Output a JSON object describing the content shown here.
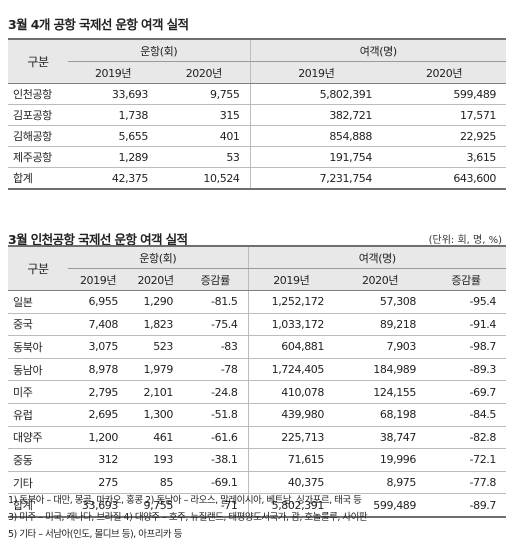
{
  "table1": {
    "title": "3월 4개 공항 국제선 운항 여객 실적",
    "row_header": "구분",
    "flights_header": "운항(회)",
    "passengers_header": "여객(명)",
    "years": [
      "2019년",
      "2020년"
    ],
    "rows": [
      {
        "name": "인천공항",
        "f2019": "33,693",
        "f2020": "9,755",
        "p2019": "5,802,391",
        "p2020": "599,489"
      },
      {
        "name": "김포공항",
        "f2019": "1,738",
        "f2020": "315",
        "p2019": "382,721",
        "p2020": "17,571"
      },
      {
        "name": "김해공항",
        "f2019": "5,655",
        "f2020": "401",
        "p2019": "854,888",
        "p2020": "22,925"
      },
      {
        "name": "제주공항",
        "f2019": "1,289",
        "f2020": "53",
        "p2019": "191,754",
        "p2020": "3,615"
      },
      {
        "name": "합계",
        "f2019": "42,375",
        "f2020": "10,524",
        "p2019": "7,231,754",
        "p2020": "643,600"
      }
    ]
  },
  "table2": {
    "title": "3월 인천공항 국제선 운항 여객 실적",
    "unit_note": "(단위: 회, 명, %)",
    "row_header": "구분",
    "flights_header": "운항(회)",
    "passengers_header": "여객(명)",
    "years": [
      "2019년",
      "2020년"
    ],
    "change_label": "증감률",
    "rows": [
      {
        "name": "일본",
        "f2019": "6,955",
        "f2020": "1,290",
        "fchg": "-81.5",
        "p2019": "1,252,172",
        "p2020": "57,308",
        "pchg": "-95.4"
      },
      {
        "name": "중국",
        "f2019": "7,408",
        "f2020": "1,823",
        "fchg": "-75.4",
        "p2019": "1,033,172",
        "p2020": "89,218",
        "pchg": "-91.4"
      },
      {
        "name": "동북아",
        "f2019": "3,075",
        "f2020": "523",
        "fchg": "-83",
        "p2019": "604,881",
        "p2020": "7,903",
        "pchg": "-98.7"
      },
      {
        "name": "동남아",
        "f2019": "8,978",
        "f2020": "1,979",
        "fchg": "-78",
        "p2019": "1,724,405",
        "p2020": "184,989",
        "pchg": "-89.3"
      },
      {
        "name": "미주",
        "f2019": "2,795",
        "f2020": "2,101",
        "fchg": "-24.8",
        "p2019": "410,078",
        "p2020": "124,155",
        "pchg": "-69.7"
      },
      {
        "name": "유럽",
        "f2019": "2,695",
        "f2020": "1,300",
        "fchg": "-51.8",
        "p2019": "439,980",
        "p2020": "68,198",
        "pchg": "-84.5"
      },
      {
        "name": "대양주",
        "f2019": "1,200",
        "f2020": "461",
        "fchg": "-61.6",
        "p2019": "225,713",
        "p2020": "38,747",
        "pchg": "-82.8"
      },
      {
        "name": "중동",
        "f2019": "312",
        "f2020": "193",
        "fchg": "-38.1",
        "p2019": "71,615",
        "p2020": "19,996",
        "pchg": "-72.1"
      },
      {
        "name": "기타",
        "f2019": "275",
        "f2020": "85",
        "fchg": "-69.1",
        "p2019": "40,375",
        "p2020": "8,975",
        "pchg": "-77.8"
      },
      {
        "name": "합계",
        "f2019": "33,693",
        "f2020": "9,755",
        "fchg": "-71",
        "p2019": "5,802,391",
        "p2020": "599,489",
        "pchg": "-89.7"
      }
    ]
  },
  "footnotes": [
    "1) 동북아 – 대만, 몽골, 마카오, 홍콩 2) 동남아 – 라오스, 말레이시아, 베트남, 싱가포르, 태국 등",
    "3) 미주 – 미국, 캐나다, 브라질 4) 대양주 – 호주, 뉴질랜드, 태평양도서국가, 괌, 호놀룰루, 사이판",
    "5) 기타 – 서남아(인도, 몰디브 등), 아프리카 등"
  ]
}
